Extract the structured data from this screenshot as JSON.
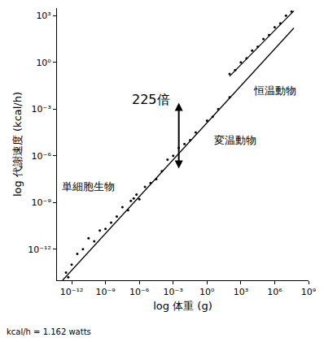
{
  "chart_data": {
    "type": "scatter",
    "log": true,
    "grid": false,
    "color": "#000000",
    "marker": "dot",
    "line_style": "solid",
    "x_label": "log 体重 (g)",
    "y_label": "log 代謝速度 (kcal/h)",
    "xlim": [
      5e-14,
      1000000000.0
    ],
    "ylim": [
      1e-14,
      3000
    ],
    "xticks": [
      {
        "value": 1e-12,
        "label": "10⁻¹²"
      },
      {
        "value": 1e-09,
        "label": "10⁻⁹"
      },
      {
        "value": 1e-06,
        "label": "10⁻⁶"
      },
      {
        "value": 0.001,
        "label": "10⁻³"
      },
      {
        "value": 1,
        "label": "10⁰"
      },
      {
        "value": 1000,
        "label": "10³"
      },
      {
        "value": 1000000,
        "label": "10⁶"
      },
      {
        "value": 1000000000,
        "label": "10⁹"
      }
    ],
    "yticks": [
      {
        "value": 1e-12,
        "label": "10⁻¹²"
      },
      {
        "value": 1e-09,
        "label": "10⁻⁹"
      },
      {
        "value": 1e-06,
        "label": "10⁻⁶"
      },
      {
        "value": 0.001,
        "label": "10⁻³"
      },
      {
        "value": 1,
        "label": "10⁰"
      },
      {
        "value": 1000,
        "label": "10³"
      }
    ],
    "series": [
      {
        "name": "単細胞生物",
        "x": [
          3.16e-13,
          5.01e-13,
          1e-12,
          3.16e-12,
          1e-11,
          3.16e-11,
          1e-10,
          3.16e-10,
          1e-09,
          3.16e-09,
          1e-08,
          3.16e-08,
          1e-07,
          1.78e-07,
          3.16e-07,
          5.62e-07,
          1e-06,
          3.16e-06,
          1e-05,
          3.16e-05,
          0.0001
        ],
        "values": [
          3.16e-14,
          1.58e-14,
          1e-13,
          5.01e-13,
          1e-12,
          5.01e-12,
          3.16e-12,
          1.58e-11,
          2e-11,
          5.01e-11,
          1.26e-10,
          5.01e-10,
          3.16e-10,
          1.26e-09,
          1.78e-09,
          3.16e-09,
          1.58e-09,
          1e-08,
          1.78e-08,
          3.16e-08,
          1e-07
        ]
      },
      {
        "name": "変温動物",
        "x": [
          0.000316,
          0.001,
          0.00316,
          0.01,
          0.0316,
          0.1,
          1,
          3.16,
          10,
          100
        ],
        "values": [
          5.62e-07,
          1e-06,
          3.16e-06,
          5.62e-06,
          1e-05,
          3.16e-05,
          0.000178,
          0.000316,
          0.001,
          0.00562
        ]
      },
      {
        "name": "恒温動物",
        "x": [
          100,
          316,
          1000,
          3160,
          10000,
          31600,
          100000,
          316000,
          1000000,
          3160000,
          10000000,
          31600000
        ],
        "values": [
          0.178,
          0.316,
          1,
          1.78,
          5.62,
          10,
          31.6,
          56.2,
          178,
          316,
          1000,
          1780
        ]
      }
    ],
    "lines": [
      {
        "x": [
          1.58e-13,
          50100000.0
        ],
        "values": [
          1e-14,
          158
        ]
      },
      {
        "x": [
          100,
          50100000.0
        ],
        "values": [
          0.126,
          2000
        ]
      }
    ],
    "annotations": [
      {
        "text": "225倍"
      },
      {
        "text": "kcal/h = 1.162 watts"
      }
    ]
  }
}
